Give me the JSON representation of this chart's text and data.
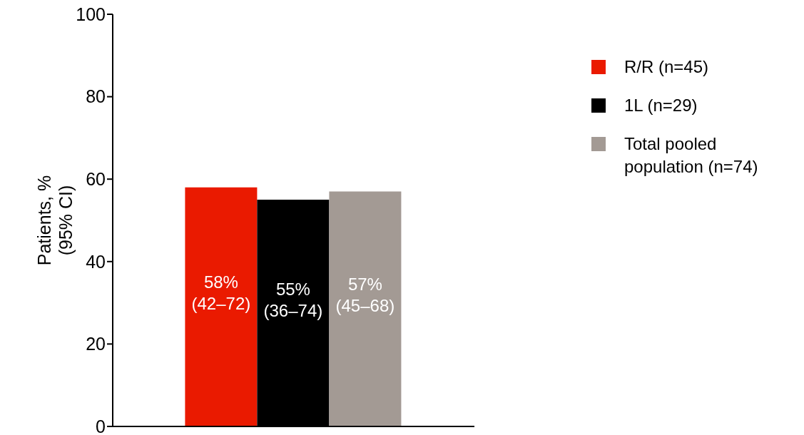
{
  "chart_data": {
    "type": "bar",
    "ylabel": "Patients, %\n(95% CI)",
    "categories": [
      null
    ],
    "series": [
      {
        "name": "R/R (n=45)",
        "color": "#ea1a00",
        "values": [
          58
        ],
        "value_labels": [
          "58%\n(42–72)"
        ]
      },
      {
        "name": "1L (n=29)",
        "color": "#000000",
        "values": [
          55
        ],
        "value_labels": [
          "55%\n(36–74)"
        ]
      },
      {
        "name": "Total pooled population (n=74)",
        "color": "#a39a94",
        "values": [
          57
        ],
        "value_labels": [
          "57%\n(45–68)"
        ]
      }
    ],
    "ylim": [
      0,
      100
    ],
    "yticks": [
      0,
      20,
      40,
      60,
      80,
      100
    ],
    "grid": false,
    "legend": "top right"
  }
}
